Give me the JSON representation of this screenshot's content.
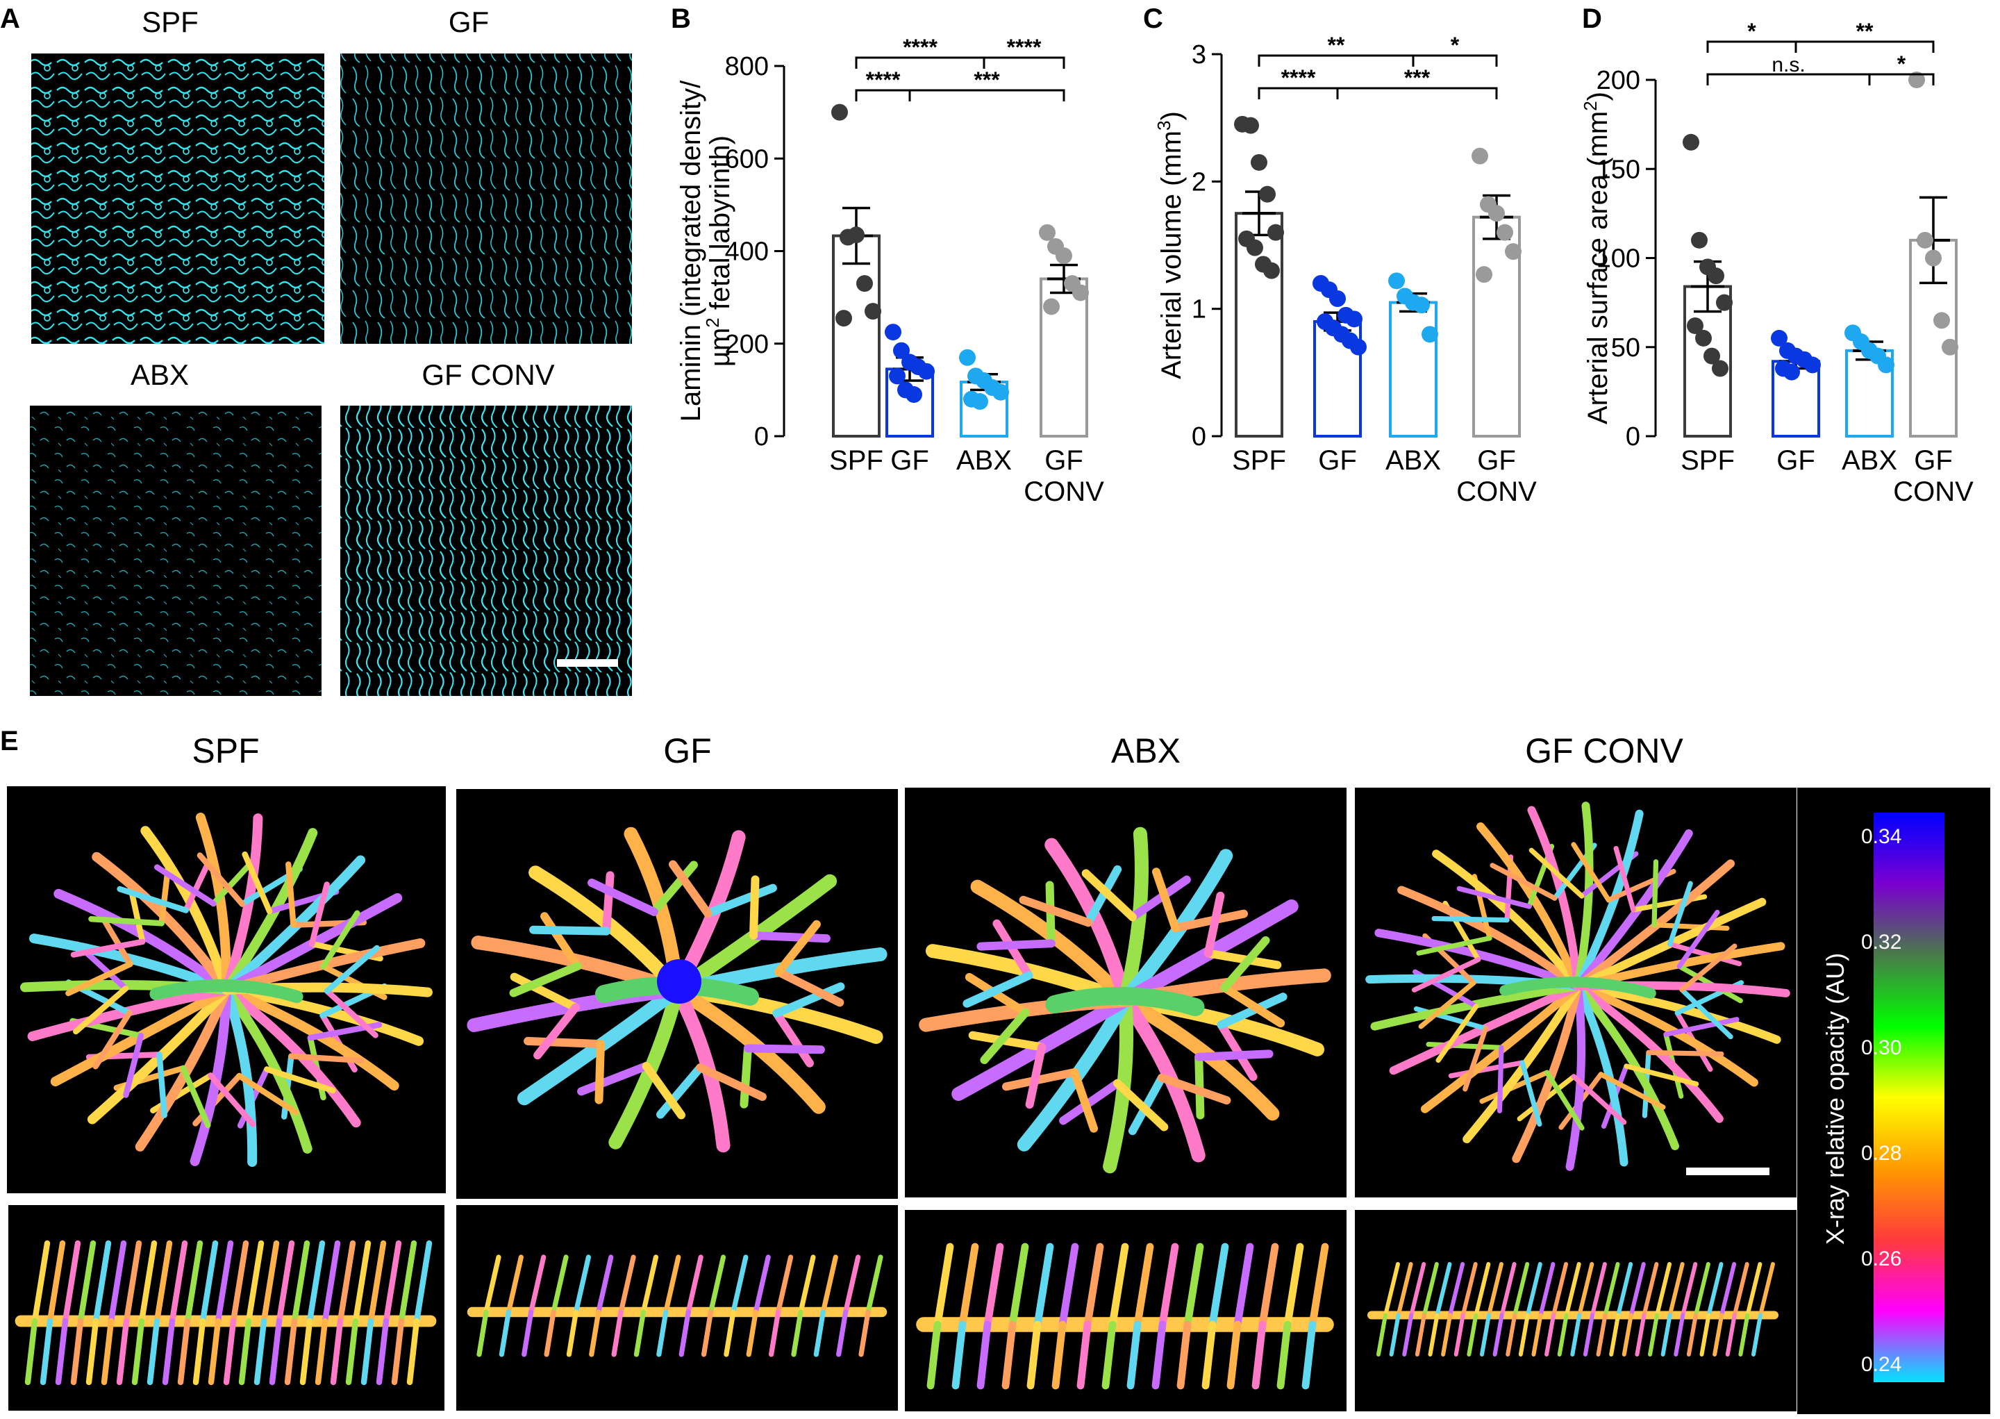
{
  "panel_letters": {
    "a": "A",
    "b": "B",
    "c": "C",
    "d": "D",
    "e": "E"
  },
  "micrographs": {
    "labels": [
      "SPF",
      "GF",
      "ABX",
      "GF CONV"
    ],
    "stain_color": "#34e3f0"
  },
  "casts": {
    "labels": [
      "SPF",
      "GF",
      "ABX",
      "GF CONV"
    ]
  },
  "colorbar": {
    "label": "X-ray relative opacity (AU)",
    "ticks": [
      "0.34",
      "0.32",
      "0.30",
      "0.28",
      "0.26",
      "0.24"
    ],
    "stops": [
      "#00e5ff",
      "#ff00ff",
      "#ff3b3b",
      "#ff9a00",
      "#ffff00",
      "#00ff00",
      "#4a7a4a",
      "#7a00d0",
      "#0000ff"
    ]
  },
  "group_colors": {
    "SPF": "#3a3a3a",
    "GF": "#0a38e0",
    "ABX": "#1ea8f0",
    "GF CONV": "#9a9a9a"
  },
  "chart_data": [
    {
      "type": "bar",
      "panel": "B",
      "categories": [
        "SPF",
        "GF",
        "ABX",
        "GF CONV"
      ],
      "category_lines": [
        [
          "SPF"
        ],
        [
          "GF"
        ],
        [
          "ABX"
        ],
        [
          "GF",
          "CONV"
        ]
      ],
      "ylabel_line1": "Laminin (integrated density/",
      "ylabel_line2_pre": "µm",
      "ylabel_line2_sup": "2",
      "ylabel_line2_post": " fetal labyrinth)",
      "ylim": [
        0,
        800
      ],
      "yticks": [
        0,
        200,
        400,
        600,
        800
      ],
      "values": [
        433,
        145,
        117,
        340
      ],
      "errors": [
        60,
        25,
        17,
        30
      ],
      "points": [
        [
          700,
          430,
          435,
          330,
          270,
          255
        ],
        [
          225,
          185,
          160,
          150,
          140,
          130,
          100,
          90
        ],
        [
          170,
          130,
          120,
          105,
          95,
          80,
          75
        ],
        [
          440,
          410,
          390,
          330,
          310,
          280
        ]
      ],
      "significance": [
        {
          "from": 0,
          "to": 1,
          "label": "****",
          "level": 1
        },
        {
          "from": 1,
          "to": 3,
          "label": "***",
          "level": 1
        },
        {
          "from": 0,
          "to": 2,
          "label": "****",
          "level": 2
        },
        {
          "from": 2,
          "to": 3,
          "label": "****",
          "level": 2
        }
      ]
    },
    {
      "type": "bar",
      "panel": "C",
      "categories": [
        "SPF",
        "GF",
        "ABX",
        "GF CONV"
      ],
      "category_lines": [
        [
          "SPF"
        ],
        [
          "GF"
        ],
        [
          "ABX"
        ],
        [
          "GF",
          "CONV"
        ]
      ],
      "ylabel_line1": "",
      "ylabel_line2_pre": "Arterial volume (mm",
      "ylabel_line2_sup": "3",
      "ylabel_line2_post": ")",
      "ylim": [
        0,
        3
      ],
      "yticks": [
        0,
        1,
        2,
        3
      ],
      "values": [
        1.75,
        0.9,
        1.05,
        1.72
      ],
      "errors": [
        0.17,
        0.07,
        0.07,
        0.17
      ],
      "points": [
        [
          2.45,
          2.44,
          2.15,
          1.9,
          1.6,
          1.55,
          1.48,
          1.35,
          1.3
        ],
        [
          1.2,
          1.15,
          1.08,
          0.95,
          0.92,
          0.9,
          0.85,
          0.8,
          0.75,
          0.7
        ],
        [
          1.22,
          1.1,
          1.05,
          1.03,
          0.8
        ],
        [
          2.2,
          1.82,
          1.75,
          1.6,
          1.45,
          1.27
        ]
      ],
      "significance": [
        {
          "from": 0,
          "to": 1,
          "label": "****",
          "level": 1
        },
        {
          "from": 1,
          "to": 3,
          "label": "***",
          "level": 1
        },
        {
          "from": 0,
          "to": 2,
          "label": "**",
          "level": 2
        },
        {
          "from": 2,
          "to": 3,
          "label": "*",
          "level": 2
        }
      ]
    },
    {
      "type": "bar",
      "panel": "D",
      "categories": [
        "SPF",
        "GF",
        "ABX",
        "GF CONV"
      ],
      "category_lines": [
        [
          "SPF"
        ],
        [
          "GF"
        ],
        [
          "ABX"
        ],
        [
          "GF",
          "CONV"
        ]
      ],
      "ylabel_line1": "",
      "ylabel_line2_pre": "Arterial surface area (mm",
      "ylabel_line2_sup": "2",
      "ylabel_line2_post": ")",
      "ylim": [
        0,
        200
      ],
      "yticks": [
        0,
        50,
        100,
        150,
        200
      ],
      "values": [
        84,
        42,
        48,
        110
      ],
      "errors": [
        14,
        4,
        5,
        24
      ],
      "points": [
        [
          165,
          110,
          95,
          90,
          75,
          62,
          55,
          45,
          38
        ],
        [
          55,
          48,
          45,
          43,
          40,
          38,
          36
        ],
        [
          58,
          53,
          48,
          45,
          40
        ],
        [
          200,
          110,
          100,
          65,
          50
        ]
      ],
      "significance": [
        {
          "from": 0,
          "to": 2,
          "label": "n.s.",
          "level": 1
        },
        {
          "from": 2,
          "to": 3,
          "label": "*",
          "level": 1
        },
        {
          "from": 0,
          "to": 1,
          "label": "*",
          "level": 2
        },
        {
          "from": 1,
          "to": 3,
          "label": "**",
          "level": 2
        }
      ]
    }
  ]
}
